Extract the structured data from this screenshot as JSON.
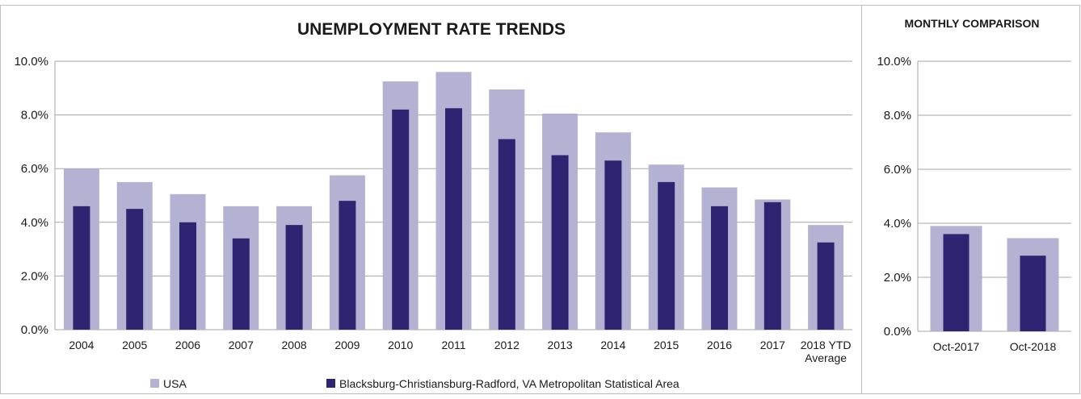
{
  "colors": {
    "usa": "#b3b2d2",
    "msa": "#2e2572",
    "grid": "#a6a6a6",
    "border": "#bfbfbf",
    "text": "#1a1a1a"
  },
  "legend": {
    "usa_label": "USA",
    "msa_label": "Blacksburg-Christiansburg-Radford, VA Metropolitan Statistical Area"
  },
  "chart_data": [
    {
      "type": "bar",
      "title": "UNEMPLOYMENT RATE TRENDS",
      "categories": [
        "2004",
        "2005",
        "2006",
        "2007",
        "2008",
        "2009",
        "2010",
        "2011",
        "2012",
        "2013",
        "2014",
        "2015",
        "2016",
        "2017",
        "2018 YTD Average"
      ],
      "series": [
        {
          "name": "USA",
          "values": [
            6.0,
            5.5,
            5.05,
            4.6,
            4.6,
            5.75,
            9.25,
            9.6,
            8.95,
            8.05,
            7.35,
            6.15,
            5.3,
            4.85,
            3.9
          ]
        },
        {
          "name": "Blacksburg-Christiansburg-Radford, VA Metropolitan Statistical Area",
          "values": [
            4.6,
            4.5,
            4.0,
            3.4,
            3.9,
            4.8,
            8.2,
            8.25,
            7.1,
            6.5,
            6.3,
            5.5,
            4.6,
            4.75,
            3.25
          ]
        }
      ],
      "ylim": [
        0,
        10
      ],
      "yticks": [
        "0.0%",
        "2.0%",
        "4.0%",
        "6.0%",
        "8.0%",
        "10.0%"
      ],
      "grid": true,
      "legend_position": "bottom"
    },
    {
      "type": "bar",
      "title": "MONTHLY COMPARISON",
      "categories": [
        "Oct-2017",
        "Oct-2018"
      ],
      "series": [
        {
          "name": "USA",
          "values": [
            3.9,
            3.45
          ]
        },
        {
          "name": "Blacksburg-Christiansburg-Radford, VA Metropolitan Statistical Area",
          "values": [
            3.6,
            2.8
          ]
        }
      ],
      "ylim": [
        0,
        10
      ],
      "yticks": [
        "0.0%",
        "2.0%",
        "4.0%",
        "6.0%",
        "8.0%",
        "10.0%"
      ],
      "grid": true
    }
  ]
}
